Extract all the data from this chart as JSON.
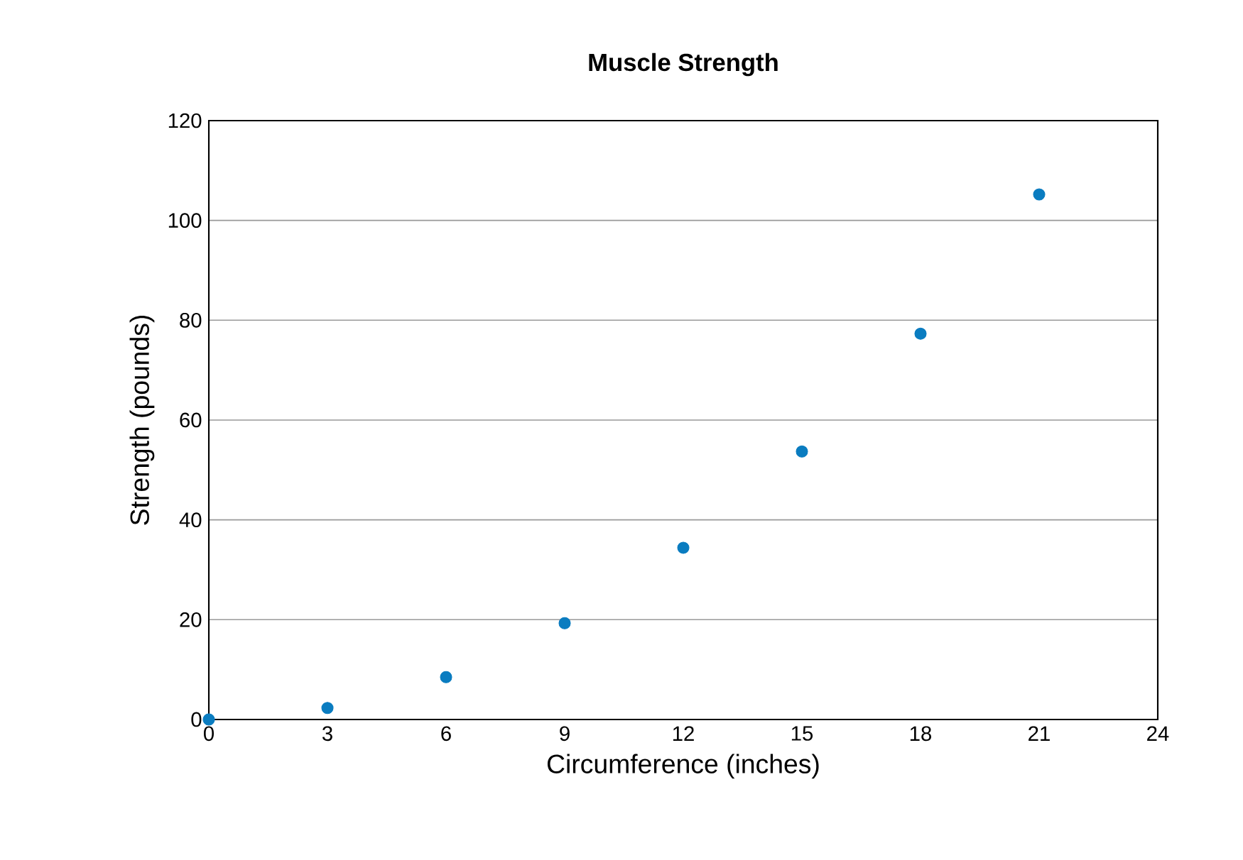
{
  "chart_data": {
    "type": "scatter",
    "title": "Muscle Strength",
    "xlabel": "Circumference (inches)",
    "ylabel": "Strength (pounds)",
    "x": [
      0,
      3,
      6,
      9,
      12,
      15,
      18,
      21
    ],
    "values": [
      0,
      2.3,
      8.5,
      19.3,
      34.4,
      53.7,
      77.3,
      105.2
    ],
    "color": "#0a7cc0",
    "xlim": [
      0,
      24
    ],
    "xticks": [
      0,
      3,
      6,
      9,
      12,
      15,
      18,
      21,
      24
    ],
    "ylim": [
      0,
      120
    ],
    "yticks": [
      0,
      20,
      40,
      60,
      80,
      100,
      120
    ],
    "grid": "y",
    "marker": "circle"
  }
}
